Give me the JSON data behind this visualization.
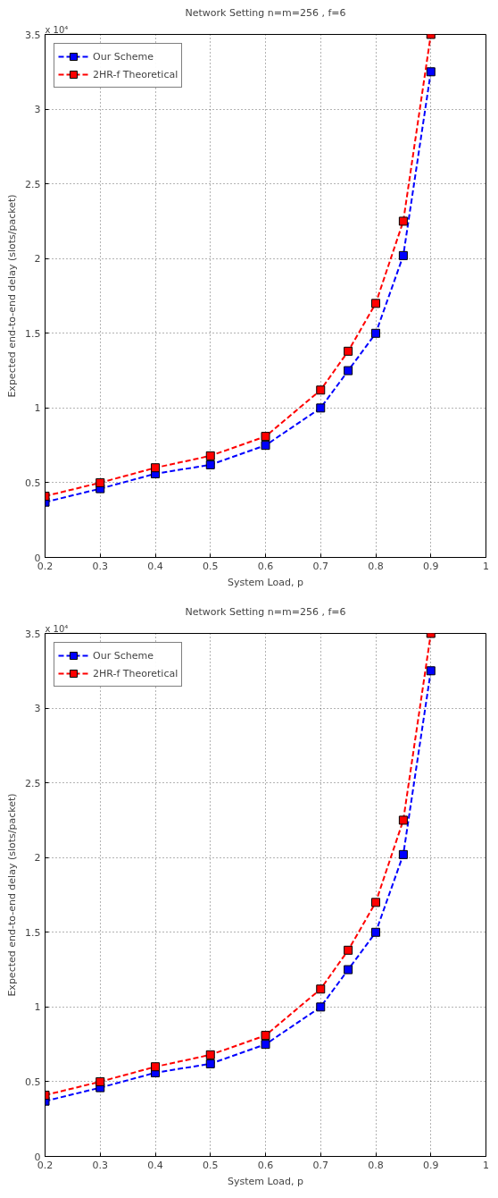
{
  "chart_data": [
    {
      "type": "line",
      "title": "Network Setting n=m=256 , f=6",
      "xlabel": "System Load, p",
      "ylabel": "Expected end-to-end delay (slots/packet)",
      "annotations": [
        "x 10⁴"
      ],
      "x": [
        0.2,
        0.3,
        0.4,
        0.5,
        0.6,
        0.7,
        0.75,
        0.8,
        0.85,
        0.9
      ],
      "series": [
        {
          "name": "Our Scheme",
          "color": "#0000ff",
          "values": [
            0.37,
            0.46,
            0.56,
            0.62,
            0.75,
            1.0,
            1.25,
            1.5,
            2.02,
            3.25
          ]
        },
        {
          "name": "2HR-f Theoretical",
          "color": "#ff0000",
          "values": [
            0.41,
            0.5,
            0.6,
            0.68,
            0.81,
            1.12,
            1.38,
            1.7,
            2.25,
            3.5
          ]
        }
      ],
      "xlim": [
        0.2,
        1
      ],
      "xticks": [
        0.2,
        0.3,
        0.4,
        0.5,
        0.6,
        0.7,
        0.8,
        0.9,
        1
      ],
      "ylim": [
        0,
        3.5
      ],
      "yticks": [
        0,
        0.5,
        1,
        1.5,
        2,
        2.5,
        3,
        3.5
      ],
      "grid": true,
      "legend": "top left",
      "marker": "square",
      "line_style": "dashed"
    },
    {
      "type": "line",
      "title": "Network Setting n=m=256 , f=6",
      "xlabel": "System Load, p",
      "ylabel": "Expected end-to-end delay (slots/packet)",
      "annotations": [
        "x 10⁴"
      ],
      "x": [
        0.2,
        0.3,
        0.4,
        0.5,
        0.6,
        0.7,
        0.75,
        0.8,
        0.85,
        0.9
      ],
      "series": [
        {
          "name": "Our Scheme",
          "color": "#0000ff",
          "values": [
            0.37,
            0.46,
            0.56,
            0.62,
            0.75,
            1.0,
            1.25,
            1.5,
            2.02,
            3.25
          ]
        },
        {
          "name": "2HR-f Theoretical",
          "color": "#ff0000",
          "values": [
            0.41,
            0.5,
            0.6,
            0.68,
            0.81,
            1.12,
            1.38,
            1.7,
            2.25,
            3.5
          ]
        }
      ],
      "xlim": [
        0.2,
        1
      ],
      "xticks": [
        0.2,
        0.3,
        0.4,
        0.5,
        0.6,
        0.7,
        0.8,
        0.9,
        1
      ],
      "ylim": [
        0,
        3.5
      ],
      "yticks": [
        0,
        0.5,
        1,
        1.5,
        2,
        2.5,
        3,
        3.5
      ],
      "grid": true,
      "legend": "top left",
      "marker": "square",
      "line_style": "dashed"
    }
  ]
}
